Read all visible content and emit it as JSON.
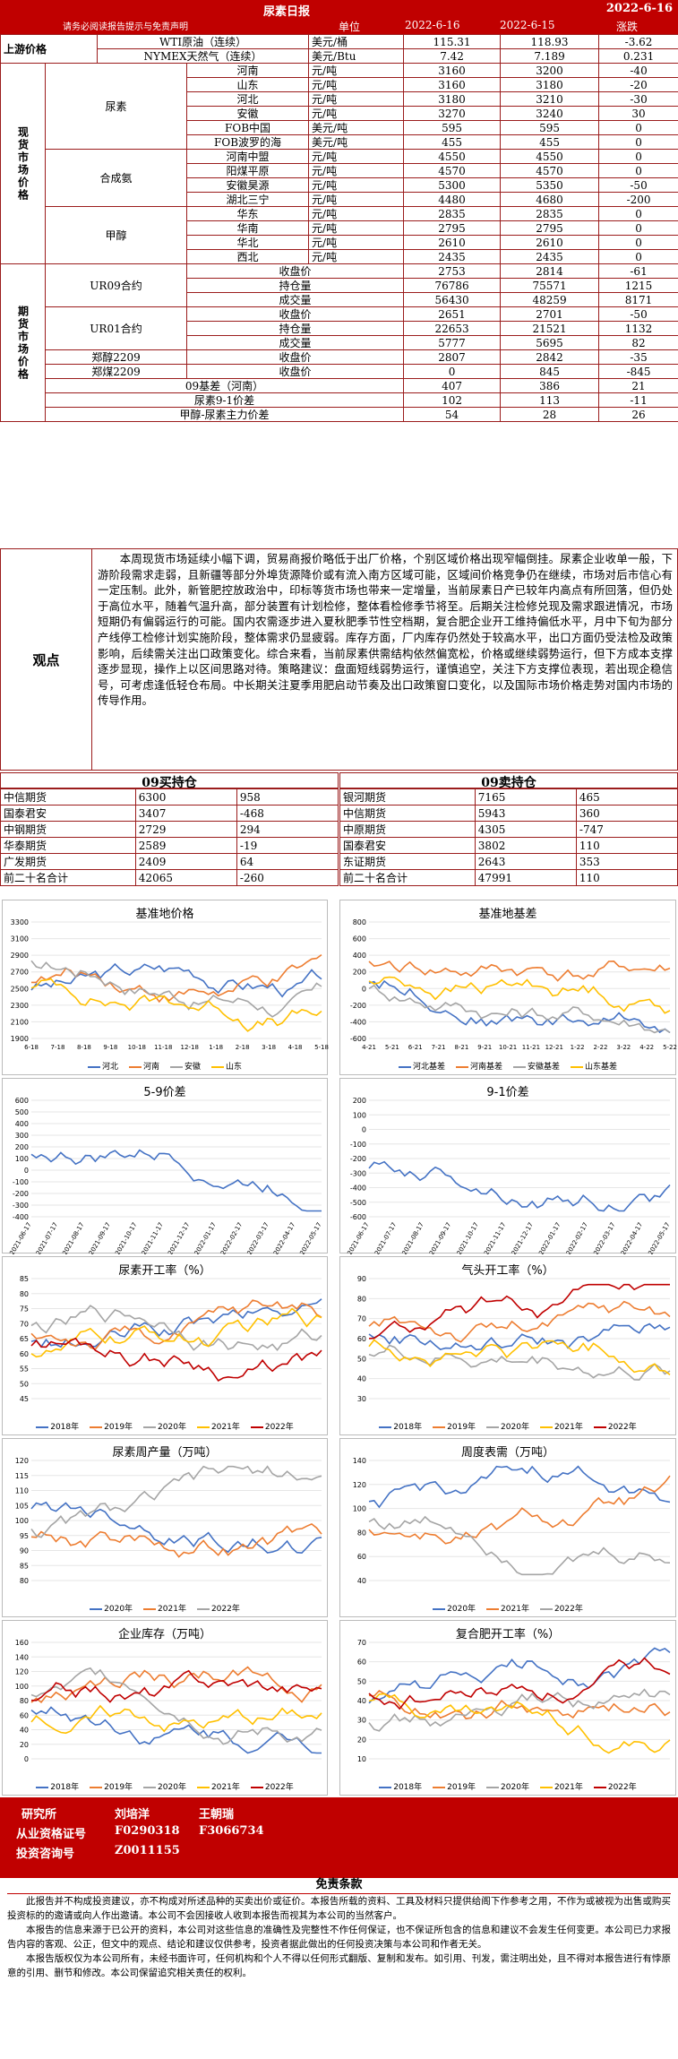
{
  "header": {
    "title": "尿素日报",
    "date": "2022-6-16",
    "subtitle": "请务必阅读报告提示与免责声明",
    "col_unit": "单位",
    "col_d1": "2022-6-16",
    "col_d2": "2022-6-15",
    "col_chg": "涨跌"
  },
  "upstream": {
    "label": "上游价格",
    "rows": [
      [
        "WTI原油（连续）",
        "美元/桶",
        "115.31",
        "118.93",
        "-3.62"
      ],
      [
        "NYMEX天然气（连续）",
        "美元/Btu",
        "7.42",
        "7.189",
        "0.231"
      ]
    ]
  },
  "spot": {
    "label": "现货市场价格",
    "groups": [
      {
        "name": "尿素",
        "rows": [
          [
            "河南",
            "元/吨",
            "3160",
            "3200",
            "-40"
          ],
          [
            "山东",
            "元/吨",
            "3160",
            "3180",
            "-20"
          ],
          [
            "河北",
            "元/吨",
            "3180",
            "3210",
            "-30"
          ],
          [
            "安徽",
            "元/吨",
            "3270",
            "3240",
            "30"
          ],
          [
            "FOB中国",
            "美元/吨",
            "595",
            "595",
            "0"
          ],
          [
            "FOB波罗的海",
            "美元/吨",
            "455",
            "455",
            "0"
          ]
        ]
      },
      {
        "name": "合成氨",
        "rows": [
          [
            "河南中盟",
            "元/吨",
            "4550",
            "4550",
            "0"
          ],
          [
            "阳煤平原",
            "元/吨",
            "4570",
            "4570",
            "0"
          ],
          [
            "安徽昊源",
            "元/吨",
            "5300",
            "5350",
            "-50"
          ],
          [
            "湖北三宁",
            "元/吨",
            "4480",
            "4680",
            "-200"
          ]
        ]
      },
      {
        "name": "甲醇",
        "rows": [
          [
            "华东",
            "元/吨",
            "2835",
            "2835",
            "0"
          ],
          [
            "华南",
            "元/吨",
            "2795",
            "2795",
            "0"
          ],
          [
            "华北",
            "元/吨",
            "2610",
            "2610",
            "0"
          ],
          [
            "西北",
            "元/吨",
            "2435",
            "2435",
            "0"
          ]
        ]
      }
    ]
  },
  "futures": {
    "label": "期货市场价格",
    "rows": [
      [
        "UR09合约",
        "收盘价",
        "2753",
        "2814",
        "-61"
      ],
      [
        "",
        "持仓量",
        "76786",
        "75571",
        "1215"
      ],
      [
        "",
        "成交量",
        "56430",
        "48259",
        "8171"
      ],
      [
        "UR01合约",
        "收盘价",
        "2651",
        "2701",
        "-50"
      ],
      [
        "",
        "持仓量",
        "22653",
        "21521",
        "1132"
      ],
      [
        "",
        "成交量",
        "5777",
        "5695",
        "82"
      ],
      [
        "郑醇2209",
        "收盘价",
        "2807",
        "2842",
        "-35"
      ],
      [
        "郑煤2209",
        "收盘价",
        "0",
        "845",
        "-845"
      ]
    ],
    "extra": [
      [
        "09基差（河南）",
        "407",
        "386",
        "21"
      ],
      [
        "尿素9-1价差",
        "102",
        "113",
        "-11"
      ],
      [
        "甲醇-尿素主力价差",
        "54",
        "28",
        "26"
      ]
    ]
  },
  "comment": {
    "label": "观点",
    "text": "本周现货市场延续小幅下调，贸易商报价略低于出厂价格，个别区域价格出现窄幅倒挂。尿素企业收单一般，下游阶段需求走弱，且新疆等部分外埠货源降价或有流入南方区域可能，区域间价格竞争仍在继续，市场对后市信心有一定压制。此外，新管肥控放政治中，印标等货市场也带来一定增量，当前尿素日产已较年内高点有所回落，但仍处于高位水平，随着气温升高，部分装置有计划检修，整体看检修季节将至。后期关注检修兑现及需求跟进情况，市场短期仍有偏弱运行的可能。国内农需逐步进入夏秋肥季节性空档期，复合肥企业开工维持偏低水平，月中下旬为部分产线停工检修计划实施阶段，整体需求仍显疲弱。库存方面，厂内库存仍然处于较高水平，出口方面仍受法检及政策影响，后续需关注出口政策变化。综合来看，当前尿素供需结构依然偏宽松，价格或继续弱势运行，但下方成本支撑逐步显现，操作上以区间思路对待。策略建议：盘面短线弱势运行，谨慎追空，关注下方支撑位表现，若出现企稳信号，可考虑逢低轻仓布局。中长期关注夏季用肥启动节奏及出口政策窗口变化，以及国际市场价格走势对国内市场的传导作用。"
  },
  "holdings": {
    "buy": {
      "title": "09买持仓",
      "rows": [
        [
          "中信期货",
          "6300",
          "958"
        ],
        [
          "国泰君安",
          "3407",
          "-468"
        ],
        [
          "中钢期货",
          "2729",
          "294"
        ],
        [
          "华泰期货",
          "2589",
          "-19"
        ],
        [
          "广发期货",
          "2409",
          "64"
        ],
        [
          "前二十名合计",
          "42065",
          "-260"
        ]
      ]
    },
    "sell": {
      "title": "09卖持仓",
      "rows": [
        [
          "银河期货",
          "7165",
          "465"
        ],
        [
          "中信期货",
          "5943",
          "360"
        ],
        [
          "中原期货",
          "4305",
          "-747"
        ],
        [
          "国泰君安",
          "3802",
          "110"
        ],
        [
          "东证期货",
          "2643",
          "353"
        ],
        [
          "前二十名合计",
          "47991",
          "110"
        ]
      ]
    }
  },
  "charts": [
    {
      "title": "基准地价格",
      "legend": [
        "河北",
        "河南",
        "安徽",
        "山东"
      ],
      "xticks": [
        "6-18",
        "7-18",
        "8-18",
        "9-18",
        "10-18",
        "11-18",
        "12-18",
        "1-18",
        "2-18",
        "3-18",
        "4-18",
        "5-18"
      ],
      "yticks": [
        "1900",
        "2100",
        "2300",
        "2500",
        "2700",
        "2900",
        "3100",
        "3300"
      ]
    },
    {
      "title": "基准地基差",
      "legend": [
        "河北基差",
        "河南基差",
        "安徽基差",
        "山东基差"
      ],
      "xticks": [
        "4-21",
        "5-21",
        "6-21",
        "7-21",
        "8-21",
        "9-21",
        "10-21",
        "11-21",
        "12-21",
        "1-22",
        "2-22",
        "3-22",
        "4-22",
        "5-22"
      ],
      "yticks": [
        "-600",
        "-400",
        "-200",
        "0",
        "200",
        "400",
        "600",
        "800"
      ]
    },
    {
      "title": "5-9价差",
      "legend": [],
      "xticks": [
        "2021-06-17",
        "2021-07-17",
        "2021-08-17",
        "2021-09-17",
        "2021-10-17",
        "2021-11-17",
        "2021-12-17",
        "2022-01-17",
        "2022-02-17",
        "2022-03-17",
        "2022-04-17",
        "2022-05-17"
      ],
      "yticks": [
        "-400",
        "-300",
        "-200",
        "-100",
        "0",
        "100",
        "200",
        "300",
        "400",
        "500",
        "600"
      ]
    },
    {
      "title": "9-1价差",
      "legend": [],
      "xticks": [
        "2021-06-17",
        "2021-07-17",
        "2021-08-17",
        "2021-09-17",
        "2021-10-17",
        "2021-11-17",
        "2021-12-17",
        "2022-01-17",
        "2022-02-17",
        "2022-03-17",
        "2022-04-17",
        "2022-05-17"
      ],
      "yticks": [
        "-600",
        "-500",
        "-400",
        "-300",
        "-200",
        "-100",
        "0",
        "100",
        "200"
      ]
    },
    {
      "title": "尿素开工率（%）",
      "legend": [
        "2018年",
        "2019年",
        "2020年",
        "2021年",
        "2022年"
      ],
      "yticks": [
        "45",
        "50",
        "55",
        "60",
        "65",
        "70",
        "75",
        "80",
        "85"
      ]
    },
    {
      "title": "气头开工率（%）",
      "legend": [
        "2018年",
        "2019年",
        "2020年",
        "2021年",
        "2022年"
      ],
      "yticks": [
        "30",
        "40",
        "50",
        "60",
        "70",
        "80",
        "90"
      ]
    },
    {
      "title": "尿素周产量（万吨）",
      "legend": [
        "2020年",
        "2021年",
        "2022年"
      ],
      "yticks": [
        "80",
        "85",
        "90",
        "95",
        "100",
        "105",
        "110",
        "115",
        "120"
      ]
    },
    {
      "title": "周度表需（万吨）",
      "legend": [
        "2020年",
        "2021年",
        "2022年"
      ],
      "yticks": [
        "40",
        "60",
        "80",
        "100",
        "120",
        "140"
      ]
    },
    {
      "title": "企业库存（万吨）",
      "legend": [
        "2018年",
        "2019年",
        "2020年",
        "2021年",
        "2022年"
      ],
      "yticks": [
        "0",
        "20",
        "40",
        "60",
        "80",
        "100",
        "120",
        "140",
        "160"
      ]
    },
    {
      "title": "复合肥开工率（%）",
      "legend": [
        "2018年",
        "2019年",
        "2020年",
        "2021年",
        "2022年"
      ],
      "yticks": [
        "10",
        "20",
        "30",
        "40",
        "50",
        "60",
        "70"
      ]
    }
  ],
  "footer": {
    "r1a": "研究所",
    "r1b": "刘培洋",
    "r1c": "王朝瑞",
    "r2a": "从业资格证号",
    "r2b": "F0290318",
    "r2c": "F3066734",
    "r3a": "投资咨询号",
    "r3b": "Z0011155"
  },
  "disclaimer": {
    "title": "免责条款",
    "p1": "此报告并不构成投资建议，亦不构成对所述品种的买卖出价或征价。本报告所载的资料、工具及材料只提供给阁下作参考之用，不作为或被视为出售或购买投资标的的邀请或向人作出邀请。本公司不会因接收人收到本报告而视其为本公司的当然客户。",
    "p2": "本报告的信息来源于已公开的资料，本公司对这些信息的准确性及完整性不作任何保证，也不保证所包含的信息和建议不会发生任何变更。本公司已力求报告内容的客观、公正，但文中的观点、结论和建议仅供参考，投资者据此做出的任何投资决策与本公司和作者无关。",
    "p3": "本报告版权仅为本公司所有，未经书面许可，任何机构和个人不得以任何形式翻版、复制和发布。如引用、刊发，需注明出处，且不得对本报告进行有悖原意的引用、删节和修改。本公司保留追究相关责任的权利。"
  }
}
